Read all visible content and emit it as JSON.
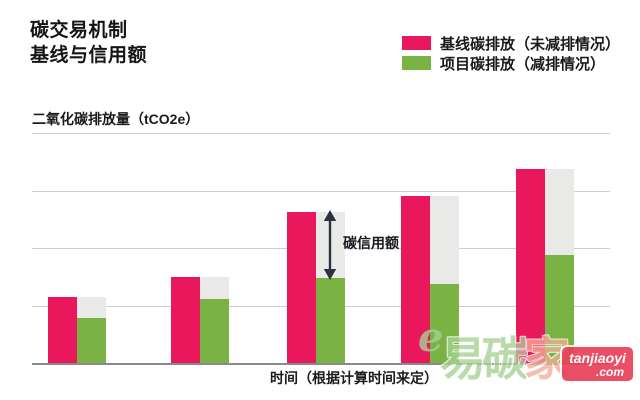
{
  "header": {
    "title_line1": "碳交易机制",
    "title_line2": "基线与信用额"
  },
  "legend": [
    {
      "label": "基线碳排放（未减排情况）",
      "color": "#E9185C"
    },
    {
      "label": "项目碳排放（减排情况）",
      "color": "#7AB243"
    }
  ],
  "chart_data": {
    "type": "bar",
    "title": "碳交易机制 基线与信用额",
    "ylabel": "二氧化碳排放量（tCO2e）",
    "xlabel": "时间（根据计算时间来定）",
    "categories": [
      "",
      "",
      "",
      "",
      ""
    ],
    "series": [
      {
        "name": "基线碳排放（未减排情况）",
        "color": "#E9185C",
        "values": [
          1.15,
          1.5,
          2.63,
          2.9,
          3.37
        ]
      },
      {
        "name": "项目碳排放（减排情况）",
        "color": "#7AB243",
        "values": [
          0.78,
          1.12,
          1.48,
          1.38,
          1.88
        ]
      }
    ],
    "credit_gap_color": "#E9E9E7",
    "annotation": {
      "text": "碳信用额",
      "group_index": 2
    },
    "ylim": [
      0,
      4
    ],
    "gridlines": true,
    "axis_tick_labels_visible": false,
    "legend_position": "top-right"
  },
  "watermark": {
    "logo_e": "e",
    "logo_text_green": "易碳",
    "logo_text_orange": "家",
    "badge_line1": "tanjiaoyi",
    "badge_line2": ".com",
    "green": "#A6D193",
    "orange": "#F2AE94",
    "badge_bg": "#E9425A"
  }
}
